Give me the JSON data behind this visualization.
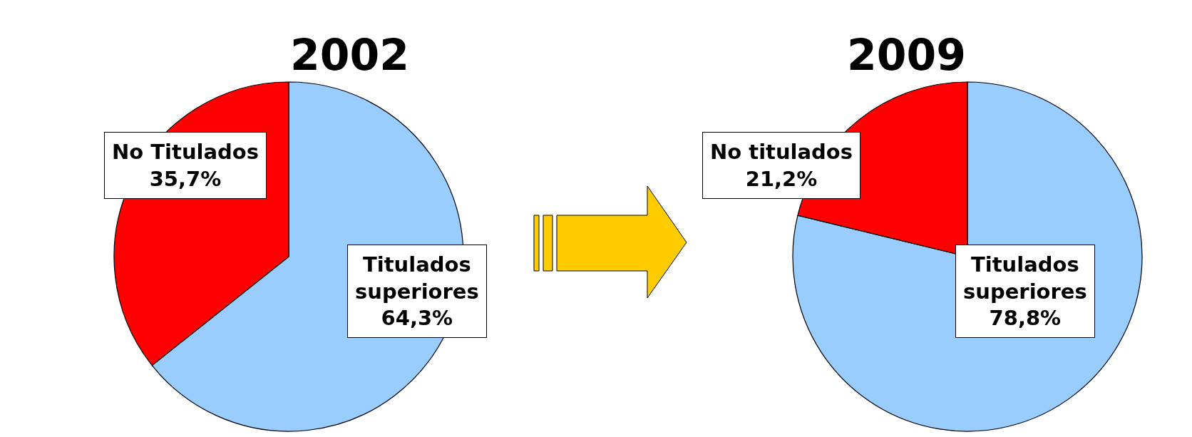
{
  "chart_data": [
    {
      "type": "pie",
      "title": "2002",
      "categories": [
        "Titulados superiores",
        "No Titulados"
      ],
      "values": [
        64.3,
        35.7
      ],
      "colors": [
        "#99ccff",
        "#ff0000"
      ],
      "value_labels": [
        "64,3%",
        "35,7%"
      ]
    },
    {
      "type": "pie",
      "title": "2009",
      "categories": [
        "Titulados superiores",
        "No titulados"
      ],
      "values": [
        78.8,
        21.2
      ],
      "colors": [
        "#99ccff",
        "#ff0000"
      ],
      "value_labels": [
        "78,8%",
        "21,2%"
      ]
    }
  ]
}
